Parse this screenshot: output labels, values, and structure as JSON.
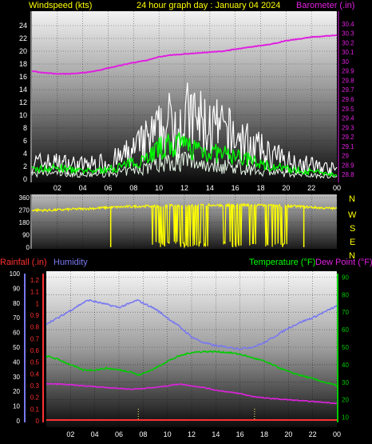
{
  "header": {
    "left": "Windspeed (kts)",
    "center": "24 hour graph day : January 04 2024",
    "right": "Barometer (.in)"
  },
  "x_ticks": [
    "02",
    "04",
    "06",
    "08",
    "10",
    "12",
    "14",
    "16",
    "18",
    "20",
    "22",
    "00"
  ],
  "colors": {
    "background": "#000000",
    "wind_gust": "#ffffff",
    "wind_avg": "#00ff00",
    "wind_low": "#e8f8e8",
    "barometer": "#e020e0",
    "direction": "#ffff00",
    "humidity": "#7878f0",
    "temperature": "#00cc00",
    "dew_point": "#dd22dd",
    "rainfall": "#ff3030",
    "rain_markers": "#ffff66",
    "compass": "#ffff00"
  },
  "compass": [
    "N",
    "W",
    "S",
    "E",
    "N"
  ],
  "bottom_header": {
    "rainfall": "Rainfall (.in)",
    "humidity": "Humidity",
    "temperature": "Temperature (°F)",
    "dew_point": "Dew Point (°F)"
  },
  "chart_data": [
    {
      "type": "line",
      "name": "wind-barometer",
      "x_range": [
        0,
        24
      ],
      "y_left": {
        "label": "Windspeed (kts)",
        "ticks": [
          "0",
          "2",
          "4",
          "6",
          "8",
          "10",
          "12",
          "14",
          "16",
          "18",
          "20",
          "22",
          "24"
        ],
        "range": [
          0,
          25
        ]
      },
      "y_right": {
        "label": "Barometer (.in)",
        "ticks": [
          "28.8",
          "28.9",
          "29",
          "29.1",
          "29.2",
          "29.3",
          "29.4",
          "29.5",
          "29.6",
          "29.7",
          "29.8",
          "29.9",
          "30",
          "30.1",
          "30.2",
          "30.3",
          "30.4"
        ],
        "range": [
          28.75,
          30.45
        ]
      },
      "gust_profile": [
        [
          0,
          3.5
        ],
        [
          2,
          3.5
        ],
        [
          4,
          3
        ],
        [
          6,
          3.5
        ],
        [
          7,
          4.5
        ],
        [
          8,
          6
        ],
        [
          9,
          8
        ],
        [
          10,
          10
        ],
        [
          11,
          12
        ],
        [
          12,
          13
        ],
        [
          13,
          12.5
        ],
        [
          14,
          11
        ],
        [
          15,
          10
        ],
        [
          16,
          9
        ],
        [
          17,
          7.5
        ],
        [
          18,
          6
        ],
        [
          19,
          5
        ],
        [
          20,
          4
        ],
        [
          21,
          3.5
        ],
        [
          22,
          3
        ],
        [
          23,
          2.5
        ],
        [
          24,
          2
        ]
      ],
      "avg_profile": [
        [
          0,
          1.5
        ],
        [
          2,
          1.8
        ],
        [
          4,
          1.2
        ],
        [
          6,
          1.5
        ],
        [
          8,
          2.5
        ],
        [
          9,
          3.5
        ],
        [
          10,
          4.8
        ],
        [
          11,
          5.3
        ],
        [
          12,
          5.2
        ],
        [
          13,
          4.8
        ],
        [
          14,
          4.2
        ],
        [
          15,
          3.8
        ],
        [
          16,
          3.6
        ],
        [
          17,
          3
        ],
        [
          18,
          2.4
        ],
        [
          19,
          2
        ],
        [
          20,
          1.6
        ],
        [
          21,
          1.4
        ],
        [
          22,
          1.2
        ],
        [
          23,
          1
        ],
        [
          24,
          0.6
        ]
      ],
      "barometer": [
        [
          0,
          29.9
        ],
        [
          1,
          29.88
        ],
        [
          2,
          29.87
        ],
        [
          3,
          29.87
        ],
        [
          4,
          29.88
        ],
        [
          5,
          29.9
        ],
        [
          6,
          29.93
        ],
        [
          7,
          29.96
        ],
        [
          8,
          29.99
        ],
        [
          9,
          30.01
        ],
        [
          10,
          30.05
        ],
        [
          11,
          30.07
        ],
        [
          12,
          30.08
        ],
        [
          13,
          30.09
        ],
        [
          14,
          30.1
        ],
        [
          15,
          30.11
        ],
        [
          16,
          30.13
        ],
        [
          17,
          30.15
        ],
        [
          18,
          30.17
        ],
        [
          19,
          30.19
        ],
        [
          20,
          30.22
        ],
        [
          21,
          30.24
        ],
        [
          22,
          30.26
        ],
        [
          23,
          30.27
        ],
        [
          24,
          30.28
        ]
      ]
    },
    {
      "type": "line",
      "name": "wind-direction",
      "x_range": [
        0,
        24
      ],
      "y_left": {
        "ticks": [
          "0",
          "90",
          "180",
          "270",
          "360"
        ],
        "range": [
          0,
          360
        ]
      },
      "base": [
        [
          0,
          270
        ],
        [
          1,
          268
        ],
        [
          2,
          270
        ],
        [
          3,
          275
        ],
        [
          4,
          278
        ],
        [
          5,
          283
        ],
        [
          6,
          288
        ],
        [
          7,
          292
        ],
        [
          8,
          296
        ],
        [
          9,
          298
        ],
        [
          10,
          300
        ],
        [
          11,
          302
        ],
        [
          12,
          303
        ],
        [
          13,
          304
        ],
        [
          14,
          305
        ],
        [
          15,
          305
        ],
        [
          16,
          305
        ],
        [
          17,
          305
        ],
        [
          18,
          304
        ],
        [
          19,
          303
        ],
        [
          20,
          300
        ],
        [
          21,
          296
        ],
        [
          22,
          290
        ],
        [
          23,
          284
        ],
        [
          24,
          280
        ]
      ],
      "dropouts_x": [
        6.2,
        15.8,
        21.4
      ],
      "dense_ranges": [
        [
          9.4,
          13.9
        ],
        [
          15,
          17.6
        ],
        [
          18.4,
          20.3
        ]
      ]
    },
    {
      "type": "line",
      "name": "humidity-temperature",
      "x_range": [
        0,
        24
      ],
      "y_left": {
        "label": "Humidity",
        "ticks": [
          "0",
          "10",
          "20",
          "30",
          "40",
          "50",
          "60",
          "70",
          "80",
          "90",
          "100"
        ],
        "range": [
          0,
          100
        ]
      },
      "y_left_inner": {
        "label": "Rainfall (.in)",
        "ticks": [
          "0",
          "0.1",
          "0.2",
          "0.3",
          "0.4",
          "0.5",
          "0.6",
          "0.7",
          "0.8",
          "0.9",
          "1",
          "1.1",
          "1.2"
        ],
        "range": [
          0,
          1.2
        ]
      },
      "y_right": {
        "label": "Temperature (°F)",
        "ticks": [
          "10",
          "20",
          "30",
          "40",
          "50",
          "60",
          "70",
          "80",
          "90"
        ],
        "range": [
          8,
          92
        ]
      },
      "humidity": [
        [
          0,
          66
        ],
        [
          1,
          70
        ],
        [
          2,
          75
        ],
        [
          3,
          80
        ],
        [
          3.5,
          82
        ],
        [
          4,
          81
        ],
        [
          5,
          79
        ],
        [
          6,
          77
        ],
        [
          7,
          80
        ],
        [
          7.5,
          82
        ],
        [
          8,
          80
        ],
        [
          9,
          76
        ],
        [
          10,
          70
        ],
        [
          11,
          64
        ],
        [
          12,
          57
        ],
        [
          13,
          53
        ],
        [
          14,
          51
        ],
        [
          15,
          50
        ],
        [
          16,
          49
        ],
        [
          17,
          50
        ],
        [
          18,
          53
        ],
        [
          19,
          58
        ],
        [
          20,
          63
        ],
        [
          21,
          67
        ],
        [
          22,
          70
        ],
        [
          23,
          74
        ],
        [
          24,
          78
        ]
      ],
      "temperature": [
        [
          0,
          45
        ],
        [
          1,
          43
        ],
        [
          2,
          40
        ],
        [
          3,
          37
        ],
        [
          4,
          37
        ],
        [
          5,
          38
        ],
        [
          6,
          37
        ],
        [
          7,
          36
        ],
        [
          7.6,
          34
        ],
        [
          8,
          35
        ],
        [
          9,
          38
        ],
        [
          10,
          42
        ],
        [
          11,
          45
        ],
        [
          12,
          47
        ],
        [
          13,
          47.5
        ],
        [
          14,
          47.5
        ],
        [
          15,
          47
        ],
        [
          16,
          46
        ],
        [
          17,
          44
        ],
        [
          18,
          42
        ],
        [
          19,
          39
        ],
        [
          20,
          36
        ],
        [
          21,
          34
        ],
        [
          22,
          32
        ],
        [
          23,
          30
        ],
        [
          24,
          28
        ]
      ],
      "dew_point": [
        [
          0,
          29
        ],
        [
          1,
          29
        ],
        [
          2,
          28.5
        ],
        [
          3,
          28
        ],
        [
          4,
          27.5
        ],
        [
          5,
          27
        ],
        [
          6,
          26.5
        ],
        [
          7,
          26
        ],
        [
          8,
          26.5
        ],
        [
          9,
          27
        ],
        [
          10,
          28
        ],
        [
          11,
          29
        ],
        [
          12,
          28
        ],
        [
          13,
          27
        ],
        [
          14,
          25.5
        ],
        [
          15,
          24.5
        ],
        [
          16,
          23.5
        ],
        [
          17,
          22
        ],
        [
          18,
          21
        ],
        [
          19,
          20.5
        ],
        [
          20,
          20
        ],
        [
          21,
          19.5
        ],
        [
          22,
          19
        ],
        [
          23,
          18.5
        ],
        [
          24,
          18
        ]
      ],
      "rainfall": [
        [
          0,
          0.01
        ],
        [
          24,
          0.01
        ]
      ],
      "rain_marker_x": [
        7.6,
        17.2
      ]
    }
  ]
}
